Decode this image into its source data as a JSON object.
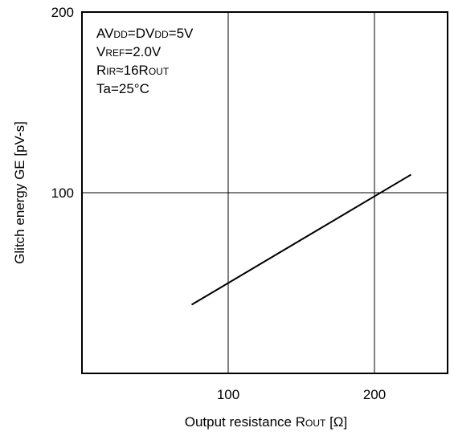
{
  "chart_data": {
    "type": "line",
    "x": [
      75,
      225
    ],
    "series": [
      {
        "values": [
          38,
          110
        ]
      }
    ],
    "xlim": [
      0,
      250
    ],
    "ylim": [
      0,
      200
    ],
    "xticks": [
      "100",
      "200"
    ],
    "yticks": [
      "100",
      "200"
    ],
    "grid": true,
    "xlabel": {
      "text": "Output resistance R",
      "sub": "OUT",
      "unit": " [Ω]"
    },
    "ylabel": "Glitch energy GE [pV-s]",
    "annotations": [
      [
        {
          "t": "AV"
        },
        {
          "t": "DD",
          "sc": true
        },
        {
          "t": "=DV"
        },
        {
          "t": "DD",
          "sc": true
        },
        {
          "t": "=5V"
        }
      ],
      [
        {
          "t": "V"
        },
        {
          "t": "REF",
          "sc": true
        },
        {
          "t": "=2.0V"
        }
      ],
      [
        {
          "t": "R"
        },
        {
          "t": "IR",
          "sc": true
        },
        {
          "t": "≈16R"
        },
        {
          "t": "OUT",
          "sc": true
        }
      ],
      [
        {
          "t": "Ta=25°C"
        }
      ]
    ]
  }
}
